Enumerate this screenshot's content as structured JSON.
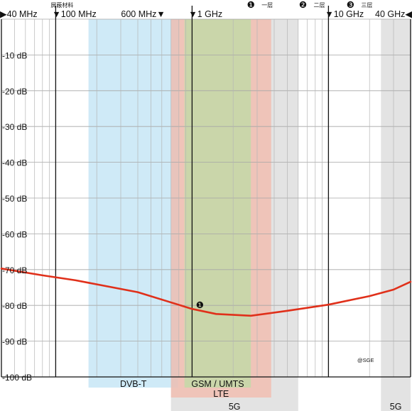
{
  "chart_data": {
    "type": "line",
    "x_scale": "log",
    "x_unit": "Hz",
    "xlim": [
      40000000,
      40000000000
    ],
    "ylim": [
      -100,
      0
    ],
    "grid": true,
    "y_ticks": [
      {
        "v": -10,
        "label": "-10 dB"
      },
      {
        "v": -20,
        "label": "-20 dB"
      },
      {
        "v": -30,
        "label": "-30 dB"
      },
      {
        "v": -40,
        "label": "-40 dB"
      },
      {
        "v": -50,
        "label": "-50 dB"
      },
      {
        "v": -60,
        "label": "-60 dB"
      },
      {
        "v": -70,
        "label": "-70 dB"
      },
      {
        "v": -80,
        "label": "-80 dB"
      },
      {
        "v": -90,
        "label": "-90 dB"
      },
      {
        "v": -100,
        "label": "-100 dB"
      }
    ],
    "freq_labels": [
      {
        "f": 40000000,
        "label": "▶40 MHz",
        "anchor": "start"
      },
      {
        "f": 100000000,
        "label": "▼100 MHz",
        "anchor": "start"
      },
      {
        "f": 600000000,
        "label": "600 MHz▼",
        "anchor": "end"
      },
      {
        "f": 1000000000,
        "label": "▼1 GHz",
        "anchor": "start"
      },
      {
        "f": 10000000000,
        "label": "▼10 GHz",
        "anchor": "start"
      },
      {
        "f": 40000000000,
        "label": "40 GHz◀",
        "anchor": "end"
      }
    ],
    "major_lines": [
      100000000,
      1000000000,
      10000000000
    ],
    "shield_label": "屏蔽材料",
    "layers": [
      {
        "num": "❶",
        "label": "一层",
        "f": 2700000000
      },
      {
        "num": "❷",
        "label": "二层",
        "f": 6500000000
      },
      {
        "num": "❸",
        "label": "三层",
        "f": 14500000000
      }
    ],
    "bands": [
      {
        "label": "DVB-T",
        "from": 174000000,
        "to": 790000000,
        "color": "#bfe3f4",
        "row": 0
      },
      {
        "label": "GSM / UMTS",
        "from": 880000000,
        "to": 2700000000,
        "color": "#c5d8a8",
        "row": 0
      },
      {
        "label": "LTE",
        "from": 700000000,
        "to": 3800000000,
        "color": "#f3b9ab",
        "row": 1
      },
      {
        "label": "5G",
        "from": 700000000,
        "to": 6000000000,
        "color": "#d9d9d9",
        "row": 2
      },
      {
        "label": "5G",
        "from": 24250000000,
        "to": 40000000000,
        "color": "#d9d9d9",
        "row": 2
      }
    ],
    "series": [
      {
        "color": "#e0301a",
        "marker": {
          "label": "❶",
          "index": 4
        },
        "points": [
          {
            "x": 40000000,
            "y": -69.7
          },
          {
            "x": 80000000,
            "y": -71.6
          },
          {
            "x": 140000000,
            "y": -73.0
          },
          {
            "x": 400000000,
            "y": -76.3
          },
          {
            "x": 1000000000,
            "y": -81.0
          },
          {
            "x": 1500000000,
            "y": -82.4
          },
          {
            "x": 2700000000,
            "y": -82.9
          },
          {
            "x": 5000000000,
            "y": -81.5
          },
          {
            "x": 10000000000,
            "y": -79.8
          },
          {
            "x": 20000000000,
            "y": -77.4
          },
          {
            "x": 30000000000,
            "y": -75.6
          },
          {
            "x": 40000000000,
            "y": -73.4
          }
        ]
      }
    ]
  },
  "watermark": "@SGE"
}
